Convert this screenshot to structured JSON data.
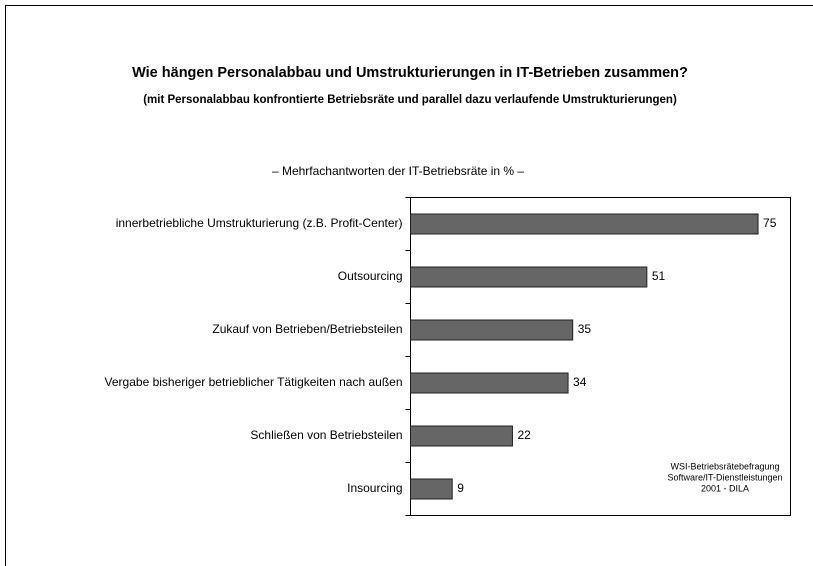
{
  "chart_data": {
    "type": "barh",
    "title": "Wie hängen Personalabbau und Umstrukturierungen in IT-Betrieben zusammen?",
    "subtitle": "(mit Personalabbau konfrontierte Betriebsräte und parallel dazu verlaufende Umstrukturierungen)",
    "note": "– Mehrfachantworten der IT-Betriebsräte in % –",
    "source": [
      "WSI-Betriebsrätebefragung",
      "Software/IT-Dienstleistungen",
      "2001 - DILA"
    ],
    "categories": [
      "innerbetriebliche Umstrukturierung (z.B. Profit-Center)",
      "Outsourcing",
      "Zukauf von Betrieben/Betriebsteilen",
      "Vergabe bisheriger betrieblicher Tätigkeiten nach außen",
      "Schließen von Betriebsteilen",
      "Insourcing"
    ],
    "values": [
      75,
      51,
      35,
      34,
      22,
      9
    ],
    "color": "#666666",
    "xlim": [
      0,
      82
    ]
  }
}
